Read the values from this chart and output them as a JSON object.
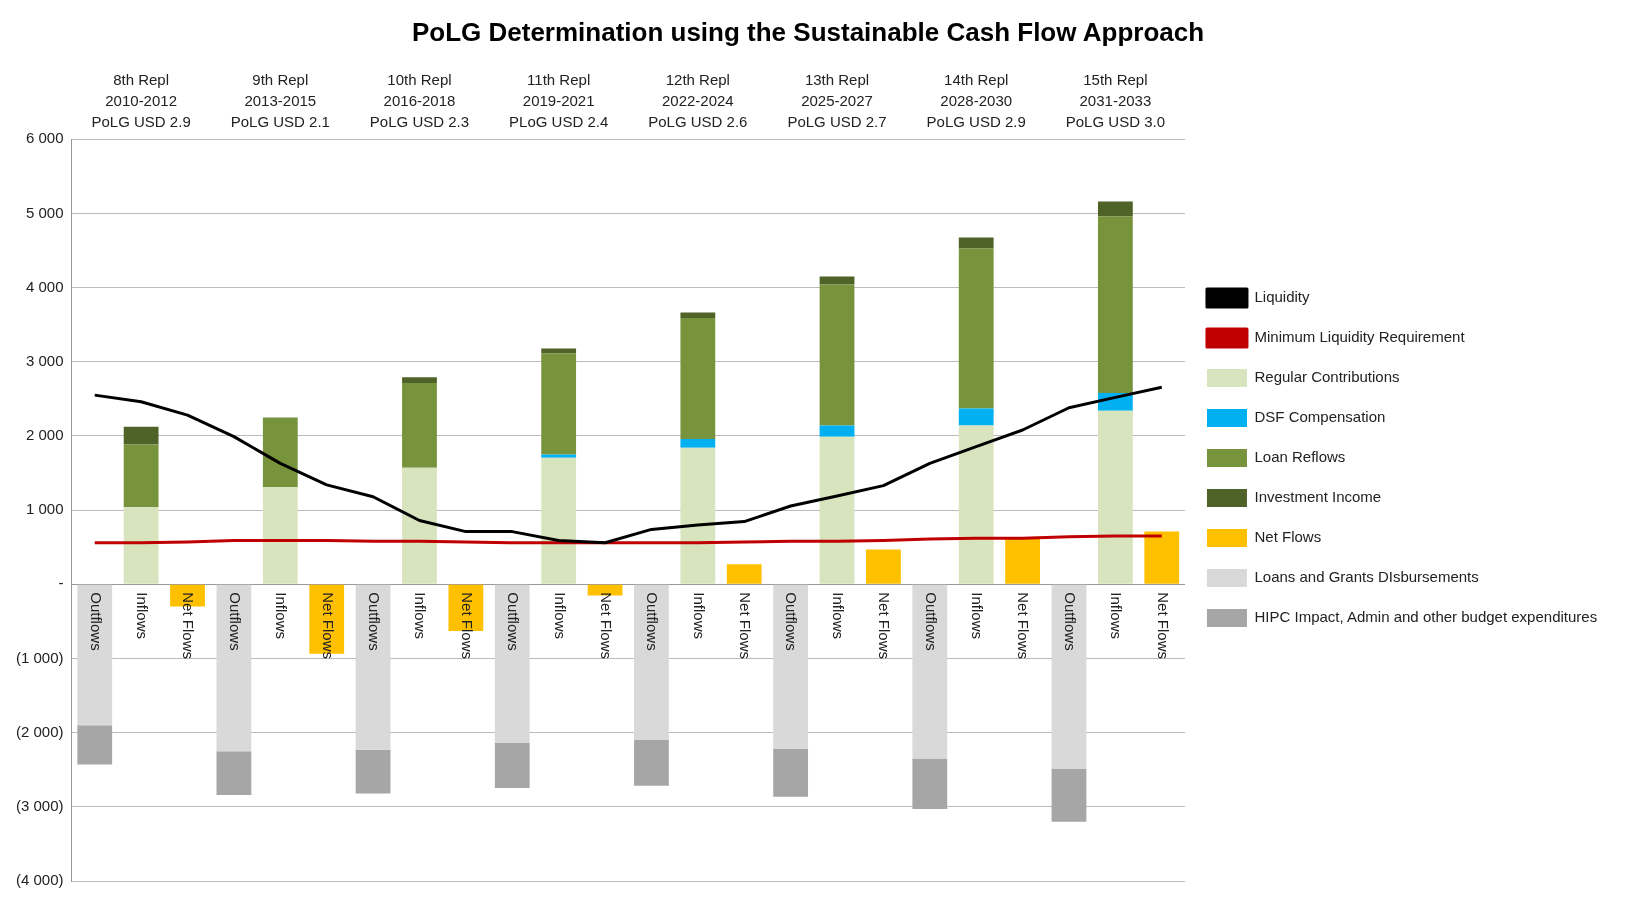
{
  "chart_data": {
    "type": "bar",
    "title": "PoLG Determination using the Sustainable Cash Flow Approach",
    "categories": [
      "Outflows",
      "Inflows",
      "Net Flows",
      "Outflows",
      "Inflows",
      "Net Flows",
      "Outflows",
      "Inflows",
      "Net Flows",
      "Outflows",
      "Inflows",
      "Net Flows",
      "Outflows",
      "Inflows",
      "Net Flows",
      "Outflows",
      "Inflows",
      "Net Flows",
      "Outflows",
      "Inflows",
      "Net Flows",
      "Outflows",
      "Inflows",
      "Net Flows"
    ],
    "annotations": [
      "8th Repl\n2010-2012\nPoLG USD 2.9",
      "9th Repl\n2013-2015\nPoLG USD 2.1",
      "10th Repl\n2016-2018\nPoLG USD 2.3",
      "11th Repl\n2019-2021\nPLoG USD 2.4",
      "12th Repl\n2022-2024\nPoLG USD 2.6",
      "13th Repl\n2025-2027\nPoLG USD 2.7",
      "14th Repl\n2028-2030\nPoLG USD 2.9",
      "15th Repl\n2031-2033\nPoLG USD 3.0"
    ],
    "stacked": true,
    "series": [
      {
        "name": "Regular Contributions",
        "color": "#d7e4bd",
        "values": [
          null,
          1040,
          null,
          null,
          1310,
          null,
          null,
          1570,
          null,
          null,
          1705,
          null,
          null,
          1840,
          null,
          null,
          1990,
          null,
          null,
          2140,
          null,
          null,
          2340,
          null
        ]
      },
      {
        "name": "DSF Compensation",
        "color": "#00b0f0",
        "values": [
          null,
          null,
          null,
          null,
          null,
          null,
          null,
          null,
          null,
          null,
          45,
          null,
          null,
          120,
          null,
          null,
          150,
          null,
          null,
          230,
          null,
          null,
          240,
          null
        ]
      },
      {
        "name": "Loan Reflows",
        "color": "#77933c",
        "values": [
          null,
          845,
          null,
          null,
          940,
          null,
          null,
          1145,
          null,
          null,
          1360,
          null,
          null,
          1630,
          null,
          null,
          1900,
          null,
          null,
          2155,
          null,
          null,
          2380,
          null
        ]
      },
      {
        "name": "Investment Income",
        "color": "#4f6228",
        "values": [
          null,
          240,
          null,
          null,
          null,
          null,
          null,
          75,
          null,
          null,
          70,
          null,
          null,
          75,
          null,
          null,
          110,
          null,
          null,
          150,
          null,
          null,
          200,
          null
        ]
      },
      {
        "name": "Net Flows",
        "color": "#ffc000",
        "values": [
          null,
          null,
          -300,
          null,
          null,
          -935,
          null,
          null,
          -630,
          null,
          null,
          -150,
          null,
          null,
          270,
          null,
          null,
          470,
          null,
          null,
          630,
          null,
          null,
          710
        ]
      },
      {
        "name": "Loans and Grants DIsbursements",
        "color": "#d9d9d9",
        "values": [
          -1900,
          null,
          null,
          -2250,
          null,
          null,
          -2230,
          null,
          null,
          -2140,
          null,
          null,
          -2100,
          null,
          null,
          -2220,
          null,
          null,
          -2350,
          null,
          null,
          -2490,
          null,
          null
        ]
      },
      {
        "name": "HIPC Impact, Admin and other budget expenditures",
        "color": "#a6a6a6",
        "values": [
          -530,
          null,
          null,
          -590,
          null,
          null,
          -590,
          null,
          null,
          -605,
          null,
          null,
          -615,
          null,
          null,
          -645,
          null,
          null,
          -680,
          null,
          null,
          -710,
          null,
          null
        ]
      },
      {
        "name": "Liquidity",
        "type": "line",
        "color": "#000000",
        "values": [
          2550,
          2460,
          2280,
          1990,
          1630,
          1340,
          1180,
          860,
          710,
          710,
          590,
          560,
          740,
          800,
          845,
          1055,
          1190,
          1330,
          1630,
          1855,
          2080,
          2380,
          2520,
          2655
        ]
      },
      {
        "name": "Minimum Liquidity Requirement",
        "type": "line",
        "color": "#c00000",
        "values": [
          560,
          560,
          570,
          590,
          590,
          590,
          580,
          580,
          570,
          560,
          560,
          560,
          560,
          560,
          570,
          580,
          580,
          590,
          610,
          620,
          620,
          640,
          650,
          650
        ]
      }
    ],
    "ylim": [
      -4000,
      6000
    ],
    "yticks": [
      {
        "value": 6000,
        "label": "6 000"
      },
      {
        "value": 5000,
        "label": "5 000"
      },
      {
        "value": 4000,
        "label": "4 000"
      },
      {
        "value": 3000,
        "label": "3 000"
      },
      {
        "value": 2000,
        "label": "2 000"
      },
      {
        "value": 1000,
        "label": "1 000"
      },
      {
        "value": 0,
        "label": "-"
      },
      {
        "value": -1000,
        "label": "(1 000)"
      },
      {
        "value": -2000,
        "label": "(2 000)"
      },
      {
        "value": -3000,
        "label": "(3 000)"
      },
      {
        "value": -4000,
        "label": "(4 000)"
      }
    ],
    "grid": "y",
    "legend": "right",
    "marker": "none",
    "line_style": "solid"
  }
}
